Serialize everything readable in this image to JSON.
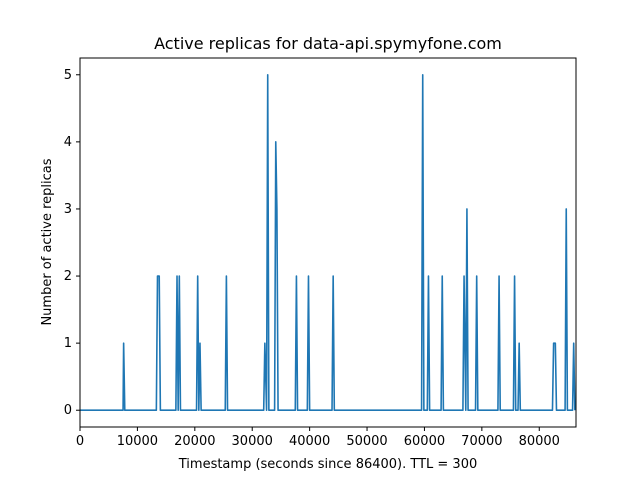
{
  "chart_data": {
    "type": "line",
    "title": "Active replicas for data-api.spymyfone.com",
    "xlabel": "Timestamp (seconds since 86400). TTL = 300",
    "ylabel": "Number of active replicas",
    "xlim": [
      0,
      86400
    ],
    "ylim": [
      -0.25,
      5.25
    ],
    "xticks": [
      0,
      10000,
      20000,
      30000,
      40000,
      50000,
      60000,
      70000,
      80000
    ],
    "yticks": [
      0,
      1,
      2,
      3,
      4,
      5
    ],
    "grid": false,
    "line_color": "#1f77b4",
    "series": [
      {
        "x": [
          0,
          7500,
          7600,
          7800,
          13300,
          13500,
          13800,
          14000,
          16700,
          16900,
          17100,
          17300,
          17500,
          20300,
          20500,
          20700,
          20900,
          21100,
          25300,
          25500,
          25700,
          32000,
          32200,
          32500,
          32700,
          32900,
          33900,
          34100,
          34300,
          34500,
          37500,
          37700,
          37900,
          39600,
          39800,
          40000,
          43900,
          44100,
          44300,
          59500,
          59700,
          59900,
          60500,
          60700,
          60900,
          62900,
          63100,
          63300,
          66700,
          66900,
          67200,
          67400,
          67600,
          68900,
          69100,
          69300,
          72800,
          73000,
          73200,
          75500,
          75700,
          75900,
          76300,
          76500,
          76700,
          82300,
          82500,
          82800,
          83000,
          84500,
          84700,
          84900,
          85800,
          86000,
          86200
        ],
        "y": [
          0,
          0,
          1,
          0,
          0,
          2,
          2,
          0,
          0,
          2,
          0,
          2,
          0,
          0,
          2,
          0,
          1,
          0,
          0,
          2,
          0,
          0,
          1,
          0,
          5,
          0,
          0,
          4,
          3,
          0,
          0,
          2,
          0,
          0,
          2,
          0,
          0,
          2,
          0,
          0,
          5,
          0,
          0,
          2,
          0,
          0,
          2,
          0,
          0,
          2,
          0,
          3,
          0,
          0,
          2,
          0,
          0,
          2,
          0,
          0,
          2,
          0,
          0,
          1,
          0,
          0,
          1,
          1,
          0,
          0,
          3,
          0,
          0,
          1,
          0
        ]
      }
    ]
  }
}
